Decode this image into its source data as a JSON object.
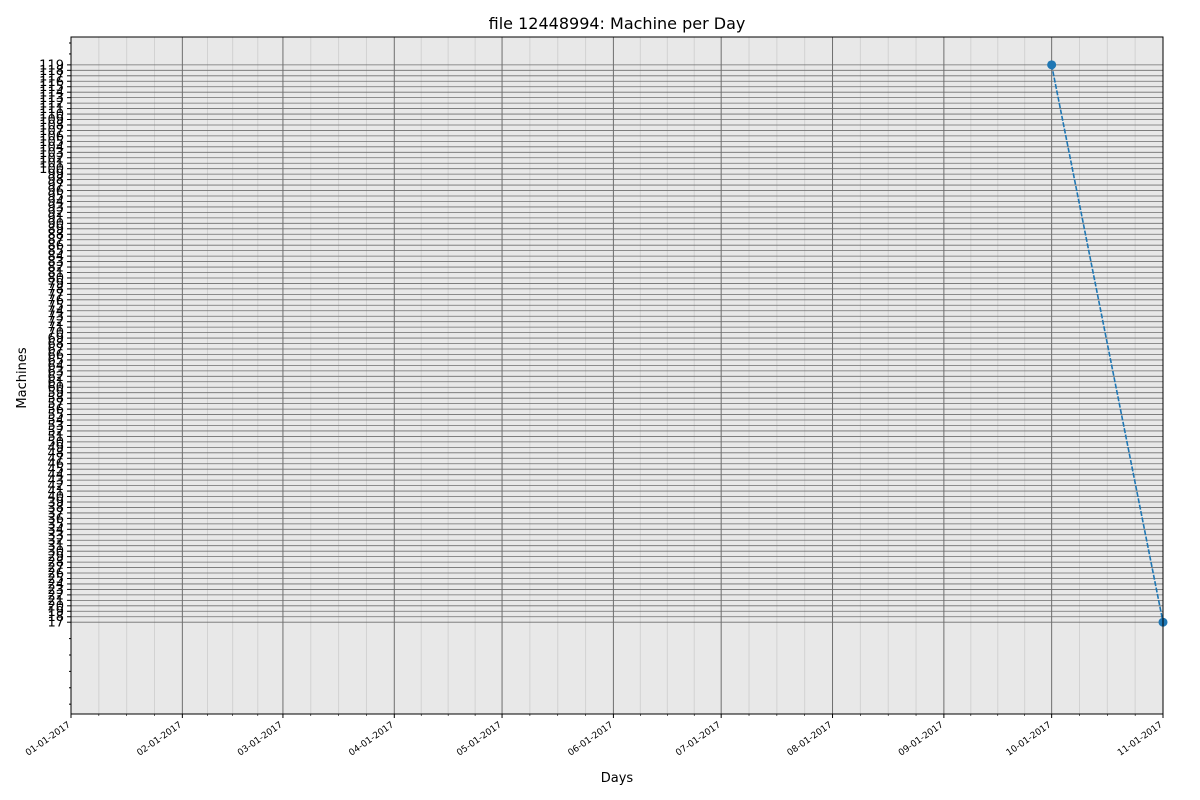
{
  "chart_data": {
    "type": "line",
    "title": "file 12448994: Machine per Day",
    "xlabel": "Days",
    "ylabel": "Machines",
    "x_tick_labels": [
      "01-01-2017",
      "02-01-2017",
      "03-01-2017",
      "04-01-2017",
      "05-01-2017",
      "06-01-2017",
      "07-01-2017",
      "08-01-2017",
      "09-01-2017",
      "10-01-2017",
      "11-01-2017"
    ],
    "y_tick_labels": [
      "17",
      "18",
      "19",
      "20",
      "21",
      "22",
      "23",
      "24",
      "25",
      "26",
      "27",
      "28",
      "29",
      "30",
      "31",
      "32",
      "33",
      "34",
      "35",
      "36",
      "37",
      "38",
      "39",
      "40",
      "41",
      "42",
      "43",
      "44",
      "45",
      "46",
      "47",
      "48",
      "49",
      "50",
      "51",
      "52",
      "53",
      "54",
      "55",
      "56",
      "57",
      "58",
      "59",
      "60",
      "61",
      "62",
      "63",
      "64",
      "65",
      "66",
      "67",
      "68",
      "69",
      "70",
      "71",
      "72",
      "73",
      "74",
      "75",
      "76",
      "77",
      "78",
      "79",
      "80",
      "81",
      "82",
      "83",
      "84",
      "85",
      "86",
      "87",
      "88",
      "89",
      "90",
      "91",
      "92",
      "93",
      "94",
      "95",
      "96",
      "97",
      "98",
      "99",
      "100",
      "101",
      "102",
      "103",
      "104",
      "105",
      "106",
      "107",
      "108",
      "109",
      "110",
      "111",
      "112",
      "113",
      "114",
      "115",
      "116",
      "117",
      "118",
      "119"
    ],
    "series": [
      {
        "x": [
          "10-01-2017",
          "11-01-2017"
        ],
        "y": [
          119,
          17
        ],
        "color": "#1f77b4"
      }
    ],
    "xlim": [
      "01-01-2017",
      "11-01-2017"
    ],
    "ylim": [
      0.2,
      124.1
    ],
    "grid": true,
    "background_color": "#e8e8e8"
  }
}
